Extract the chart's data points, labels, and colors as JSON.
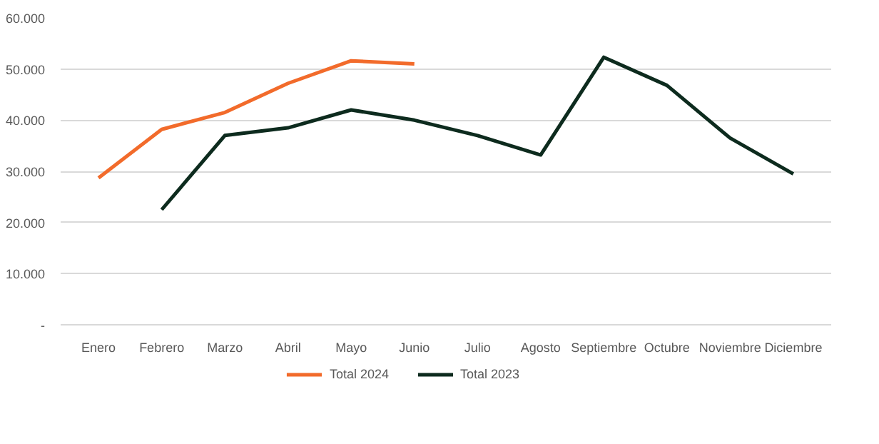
{
  "chart_data": {
    "type": "line",
    "categories": [
      "Enero",
      "Febrero",
      "Marzo",
      "Abril",
      "Mayo",
      "Junio",
      "Julio",
      "Agosto",
      "Septiembre",
      "Octubre",
      "Noviembre",
      "Diciembre"
    ],
    "series": [
      {
        "name": "Total 2024",
        "color": "#f26b2b",
        "values": [
          28700,
          38200,
          41500,
          47200,
          51600,
          51000,
          null,
          null,
          null,
          null,
          null,
          null
        ]
      },
      {
        "name": "Total 2023",
        "color": "#0d2b1e",
        "values": [
          null,
          22500,
          37000,
          38500,
          42000,
          40000,
          37000,
          33200,
          52300,
          46800,
          36500,
          29500
        ]
      }
    ],
    "ylim": [
      0,
      60000
    ],
    "yticks": [
      {
        "value": 0,
        "label": "-"
      },
      {
        "value": 10000,
        "label": "10.000"
      },
      {
        "value": 20000,
        "label": "20.000"
      },
      {
        "value": 30000,
        "label": "30.000"
      },
      {
        "value": 40000,
        "label": "40.000"
      },
      {
        "value": 50000,
        "label": "50.000"
      },
      {
        "value": 60000,
        "label": "60.000"
      }
    ],
    "grid": "y",
    "legend": "bottom",
    "marker": "none",
    "line_style": "solid"
  }
}
